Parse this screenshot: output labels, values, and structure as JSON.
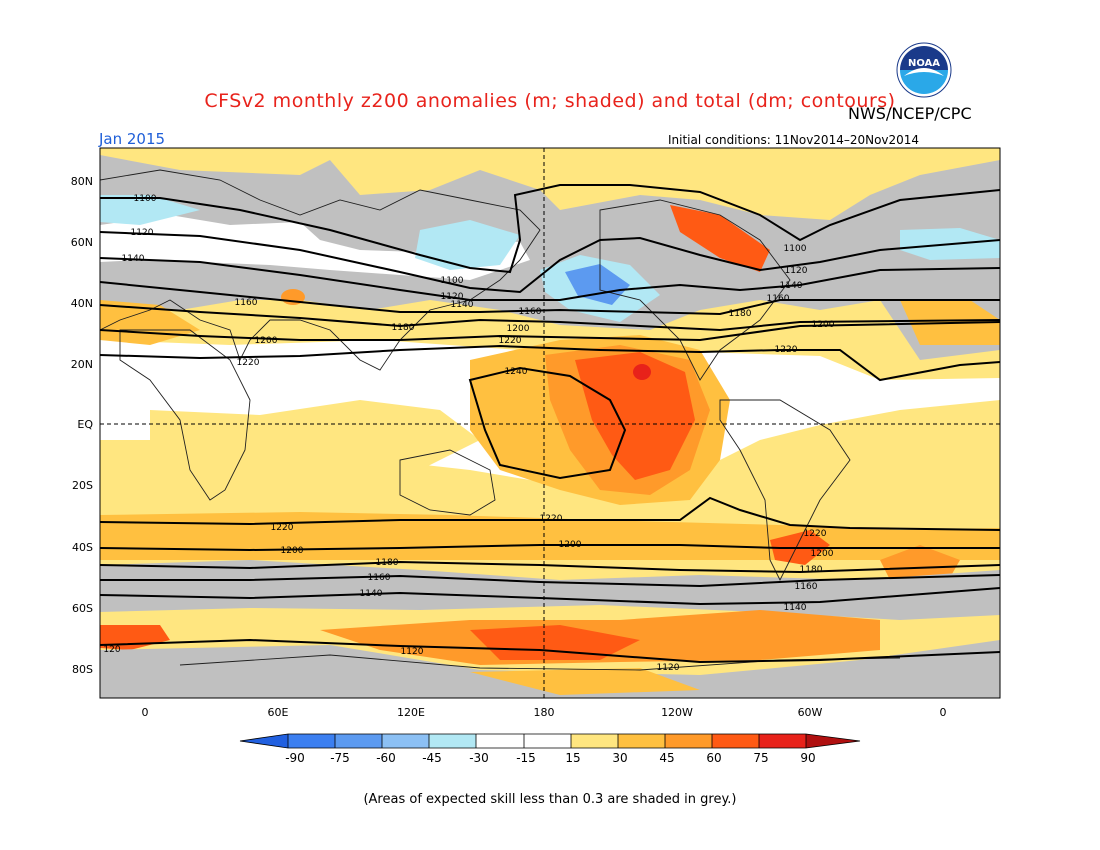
{
  "header": {
    "title": "CFSv2 monthly z200 anomalies (m; shaded) and total (dm; contours)",
    "agency": "NWS/NCEP/CPC",
    "month": "Jan 2015",
    "initial_conditions": "Initial conditions: 11Nov2014–20Nov2014",
    "logo_text": "NOAA"
  },
  "axes": {
    "lat_labels": [
      "80N",
      "60N",
      "40N",
      "20N",
      "EQ",
      "20S",
      "40S",
      "60S",
      "80S"
    ],
    "lon_labels": [
      "0",
      "60E",
      "120E",
      "180",
      "120W",
      "60W",
      "0"
    ]
  },
  "contour_labels": {
    "south": [
      "1220",
      "1200",
      "1180",
      "1160",
      "1140",
      "120",
      "1120"
    ],
    "north": [
      "1100",
      "1120",
      "1140",
      "1160",
      "1180",
      "1200",
      "1220",
      "1240"
    ]
  },
  "colorbar": {
    "ticks": [
      "-90",
      "-75",
      "-60",
      "-45",
      "-30",
      "-15",
      "15",
      "30",
      "45",
      "60",
      "75",
      "90"
    ],
    "colors": [
      "#2160e0",
      "#3c7ff0",
      "#5c9af0",
      "#8cc0f4",
      "#b2e8f4",
      "#ffffff",
      "#ffe680",
      "#ffc040",
      "#ff9a2a",
      "#ff5a14",
      "#e8221a",
      "#b01010"
    ]
  },
  "map_colors": {
    "grey": "#c0c0c0",
    "light_yellow": "#ffe680",
    "orange": "#ffc040",
    "dark_orange": "#ff9a2a",
    "red_orange": "#ff5a14",
    "red": "#e8221a",
    "light_blue": "#b2e8f4",
    "blue": "#5c9af0"
  },
  "footnote": "(Areas of expected skill less than 0.3 are shaded in grey.)"
}
